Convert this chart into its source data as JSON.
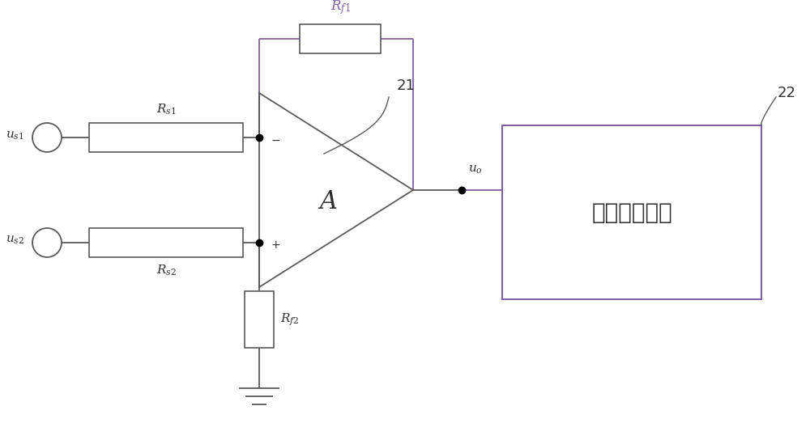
{
  "bg_color": "#ffffff",
  "line_color": "#5a5a5a",
  "purple_color": "#8060a0",
  "dark_color": "#303030",
  "fig_width": 10.0,
  "fig_height": 5.23,
  "op_amp_label": "A",
  "op_amp_number": "21",
  "block_label": "过零点检测器",
  "block_number": "22",
  "label_us1": "$\\mathit{u}_{s1}$",
  "label_us2": "$\\mathit{u}_{s2}$",
  "label_uo": "$\\mathit{u}_o$",
  "label_Rs1": "$R_{s1}$",
  "label_Rs2": "$R_{s2}$",
  "label_Rf1": "$R_{f1}$",
  "label_Rf2": "$R_{f2}$"
}
